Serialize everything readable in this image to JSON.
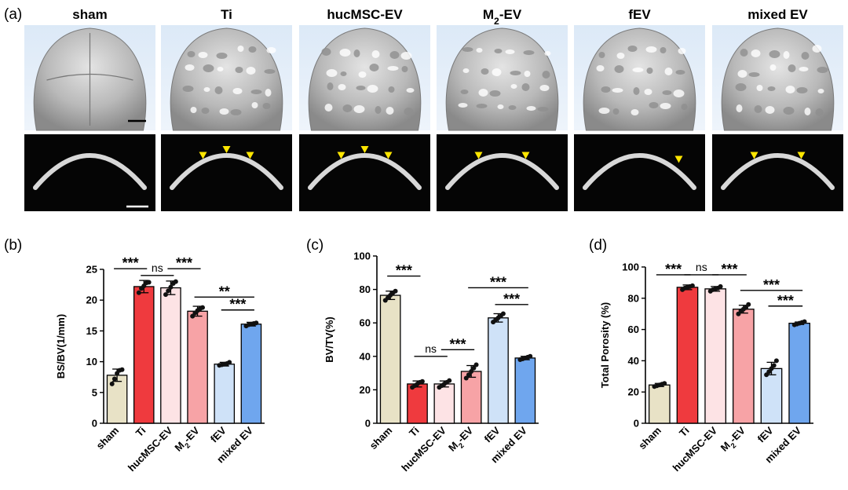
{
  "panel_a": {
    "label": "(a)",
    "groups": [
      "sham",
      "Ti",
      "hucMSC-EV",
      "M2-EV",
      "fEV",
      "mixed EV"
    ],
    "arrowhead_counts": [
      0,
      3,
      3,
      2,
      1,
      2
    ]
  },
  "colors": {
    "bar_fill": [
      "#e8e2c6",
      "#ef3a3e",
      "#fde3e5",
      "#f7a3a6",
      "#cfe2f8",
      "#6fa6ee"
    ],
    "dot": "#111111",
    "arrowhead": "#ffe600"
  },
  "chart_data": [
    {
      "panel": "(b)",
      "type": "bar",
      "ylabel": "BS/BV(1/mm)",
      "categories": [
        "sham",
        "Ti",
        "hucMSC-EV",
        "M2-EV",
        "fEV",
        "mixed EV"
      ],
      "values": [
        7.8,
        22.2,
        22.0,
        18.2,
        9.6,
        16.1
      ],
      "errors": [
        1.0,
        1.0,
        1.1,
        0.8,
        0.3,
        0.3
      ],
      "points": [
        [
          6.4,
          7.2,
          8.1,
          8.6,
          8.7
        ],
        [
          21.2,
          21.9,
          22.3,
          22.8,
          22.9
        ],
        [
          20.9,
          21.5,
          22.1,
          22.7,
          23.0
        ],
        [
          17.4,
          17.9,
          18.3,
          18.6,
          18.8
        ],
        [
          9.4,
          9.5,
          9.6,
          9.7,
          9.9
        ],
        [
          15.8,
          16.0,
          16.1,
          16.2,
          16.3
        ]
      ],
      "ylim": [
        0,
        25
      ],
      "yticks": [
        0,
        5,
        10,
        15,
        20,
        25
      ],
      "significance": [
        {
          "from": 0,
          "to": 1,
          "label": "***",
          "y": 25.1
        },
        {
          "from": 1,
          "to": 2,
          "label": "ns",
          "y": 24.0
        },
        {
          "from": 2,
          "to": 3,
          "label": "***",
          "y": 25.1
        },
        {
          "from": 3,
          "to": 5,
          "label": "**",
          "y": 20.5
        },
        {
          "from": 4,
          "to": 5,
          "label": "***",
          "y": 18.4
        }
      ]
    },
    {
      "panel": "(c)",
      "type": "bar",
      "ylabel": "BV/TV(%)",
      "categories": [
        "sham",
        "Ti",
        "hucMSC-EV",
        "M2-EV",
        "fEV",
        "mixed EV"
      ],
      "values": [
        76.5,
        23.5,
        23.5,
        31.0,
        63.0,
        39.0
      ],
      "errors": [
        2.5,
        1.8,
        1.8,
        3.5,
        2.5,
        1.0
      ],
      "points": [
        [
          73.5,
          75.0,
          76.5,
          78.0,
          79.0
        ],
        [
          21.5,
          22.5,
          23.5,
          24.5,
          25.0
        ],
        [
          21.5,
          22.5,
          23.5,
          24.5,
          25.5
        ],
        [
          27.0,
          29.0,
          31.0,
          33.0,
          35.0
        ],
        [
          60.5,
          62.0,
          63.0,
          64.0,
          65.5
        ],
        [
          38.0,
          38.5,
          39.0,
          39.5,
          40.0
        ]
      ],
      "ylim": [
        0,
        100
      ],
      "yticks": [
        0,
        20,
        40,
        60,
        80,
        100
      ],
      "significance": [
        {
          "from": 0,
          "to": 1,
          "label": "***",
          "y": 88.0
        },
        {
          "from": 1,
          "to": 2,
          "label": "ns",
          "y": 40.0
        },
        {
          "from": 2,
          "to": 3,
          "label": "***",
          "y": 44.0
        },
        {
          "from": 3,
          "to": 5,
          "label": "***",
          "y": 81.0
        },
        {
          "from": 4,
          "to": 5,
          "label": "***",
          "y": 71.0
        }
      ]
    },
    {
      "panel": "(d)",
      "type": "bar",
      "ylabel": "Total Porosity (%)",
      "categories": [
        "sham",
        "Ti",
        "hucMSC-EV",
        "M2-EV",
        "fEV",
        "mixed EV"
      ],
      "values": [
        24.5,
        87.0,
        86.0,
        73.0,
        35.0,
        64.0
      ],
      "errors": [
        1.0,
        1.5,
        1.5,
        2.5,
        4.0,
        0.8
      ],
      "points": [
        [
          23.5,
          24.0,
          24.5,
          25.0,
          25.5
        ],
        [
          85.5,
          86.5,
          87.0,
          87.5,
          88.0
        ],
        [
          84.5,
          85.5,
          86.0,
          86.5,
          87.5
        ],
        [
          70.0,
          72.0,
          73.0,
          74.0,
          76.0
        ],
        [
          31.0,
          33.0,
          35.0,
          37.0,
          40.0
        ],
        [
          63.0,
          63.5,
          64.0,
          64.5,
          65.0
        ]
      ],
      "ylim": [
        0,
        100
      ],
      "yticks": [
        0,
        20,
        40,
        60,
        80,
        100
      ],
      "significance": [
        {
          "from": 0,
          "to": 1,
          "label": "***",
          "y": 95.0
        },
        {
          "from": 1,
          "to": 2,
          "label": "ns",
          "y": 95.0
        },
        {
          "from": 2,
          "to": 3,
          "label": "***",
          "y": 95.0
        },
        {
          "from": 3,
          "to": 5,
          "label": "***",
          "y": 85.0
        },
        {
          "from": 4,
          "to": 5,
          "label": "***",
          "y": 75.0
        }
      ]
    }
  ]
}
